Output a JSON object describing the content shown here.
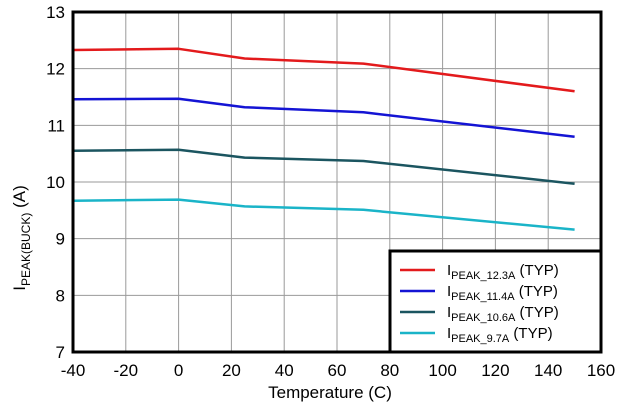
{
  "chart_data": {
    "type": "line",
    "title": "",
    "xlabel": "Temperature (C)",
    "ylabel": {
      "main": "I",
      "sub": "PEAK(BUCK)",
      "suffix": " (A)"
    },
    "xlim": [
      -40,
      160
    ],
    "ylim": [
      7,
      13
    ],
    "xticks": [
      -40,
      -20,
      0,
      20,
      40,
      60,
      80,
      100,
      120,
      140,
      160
    ],
    "yticks": [
      7,
      8,
      9,
      10,
      11,
      12,
      13
    ],
    "grid": true,
    "legend_position": "bottom-right",
    "series": [
      {
        "name": {
          "main": "I",
          "sub": "PEAK_12.3A",
          "suffix": " (TYP)"
        },
        "color": "#e31a1c",
        "x": [
          -40,
          0,
          25,
          70,
          150
        ],
        "y": [
          12.33,
          12.35,
          12.18,
          12.09,
          11.6
        ]
      },
      {
        "name": {
          "main": "I",
          "sub": "PEAK_11.4A",
          "suffix": " (TYP)"
        },
        "color": "#1414d4",
        "x": [
          -40,
          0,
          25,
          70,
          150
        ],
        "y": [
          11.46,
          11.47,
          11.32,
          11.23,
          10.8
        ]
      },
      {
        "name": {
          "main": "I",
          "sub": "PEAK_10.6A",
          "suffix": " (TYP)"
        },
        "color": "#1b5560",
        "x": [
          -40,
          0,
          25,
          70,
          150
        ],
        "y": [
          10.55,
          10.57,
          10.43,
          10.37,
          9.97
        ]
      },
      {
        "name": {
          "main": "I",
          "sub": "PEAK_9.7A",
          "suffix": " (TYP)"
        },
        "color": "#1ab4c8",
        "x": [
          -40,
          0,
          25,
          70,
          150
        ],
        "y": [
          9.67,
          9.69,
          9.57,
          9.51,
          9.16
        ]
      }
    ]
  }
}
